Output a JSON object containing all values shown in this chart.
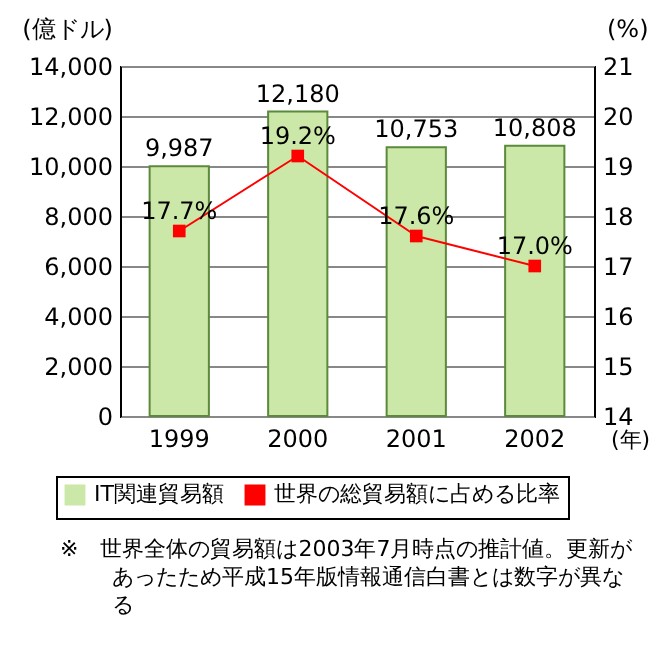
{
  "chart_data": {
    "type": "bar",
    "categories": [
      "1999",
      "2000",
      "2001",
      "2002"
    ],
    "xlabel": "(年)",
    "ylabel": "(億ドル)",
    "y2label": "(%)",
    "ylim": [
      0,
      14000
    ],
    "yticks": [
      {
        "value": 0,
        "label": "0"
      },
      {
        "value": 2000,
        "label": "2,000"
      },
      {
        "value": 4000,
        "label": "4,000"
      },
      {
        "value": 6000,
        "label": "6,000"
      },
      {
        "value": 8000,
        "label": "8,000"
      },
      {
        "value": 10000,
        "label": "10,000"
      },
      {
        "value": 12000,
        "label": "12,000"
      },
      {
        "value": 14000,
        "label": "14,000"
      }
    ],
    "y2lim": [
      14,
      21
    ],
    "y2ticks": [
      14,
      15,
      16,
      17,
      18,
      19,
      20,
      21
    ],
    "grid": "y",
    "legend": "bottom",
    "marker": "square",
    "series": [
      {
        "name": "IT関連貿易額",
        "color": "#cce8a8",
        "values": [
          9987,
          12180,
          10753,
          10808
        ],
        "value_labels": [
          "9,987",
          "12,180",
          "10,753",
          "10,808"
        ]
      },
      {
        "name": "世界の総貿易額に占める比率",
        "type": "line",
        "axis": "y2",
        "color": "#ff0000",
        "values": [
          17.7,
          19.2,
          17.6,
          17.0
        ],
        "value_labels": [
          "17.7%",
          "19.2%",
          "17.6%",
          "17.0%"
        ]
      }
    ],
    "annotations": [
      "※　世界全体の貿易額は2003年7月時点の推計値。更新があったため平成15年版情報通信白書とは数字が異なる"
    ]
  }
}
